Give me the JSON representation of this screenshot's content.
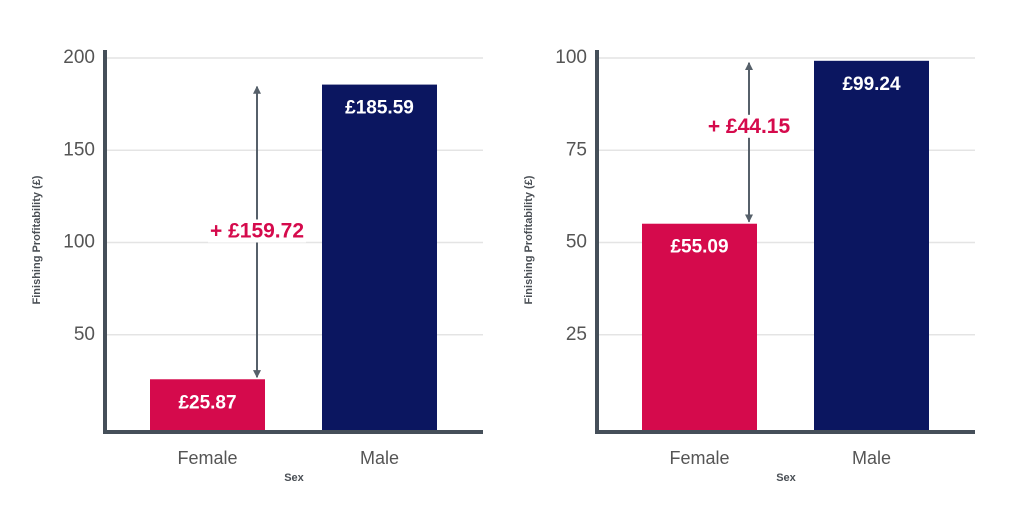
{
  "chart_data": [
    {
      "type": "bar",
      "y_label": "Finishing Profitability (£)",
      "x_label": "Sex",
      "categories": [
        "Female",
        "Male"
      ],
      "values": [
        25.87,
        185.59
      ],
      "value_labels": [
        "£25.87",
        "£185.59"
      ],
      "colors": [
        "#d50a4c",
        "#0b1660"
      ],
      "ylim": [
        0,
        200
      ],
      "yticks": [
        50,
        100,
        150,
        200
      ],
      "grid": true,
      "annotation": "+ £159.72"
    },
    {
      "type": "bar",
      "y_label": "Finishing Profitability (£)",
      "x_label": "Sex",
      "categories": [
        "Female",
        "Male"
      ],
      "values": [
        55.09,
        99.24
      ],
      "value_labels": [
        "£55.09",
        "£99.24"
      ],
      "colors": [
        "#d50a4c",
        "#0b1660"
      ],
      "ylim": [
        0,
        100
      ],
      "yticks": [
        25,
        50,
        75,
        100
      ],
      "grid": true,
      "annotation": "+ £44.15"
    }
  ]
}
